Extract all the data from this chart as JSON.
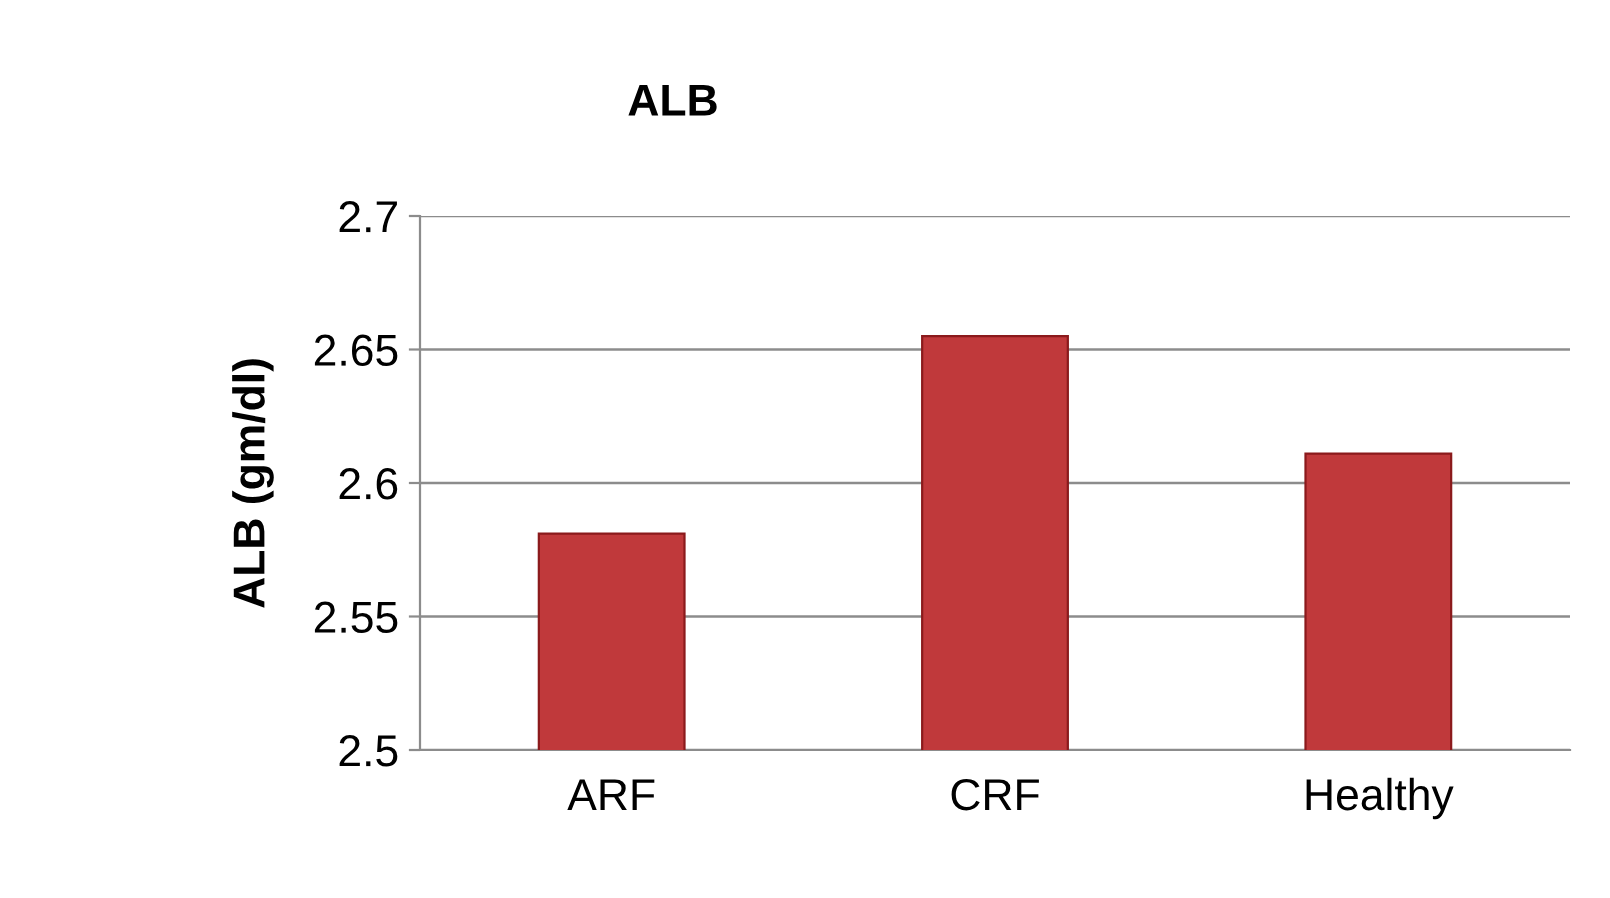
{
  "chart_data": {
    "type": "bar",
    "title": "ALB",
    "ylabel": "ALB (gm/dl)",
    "categories": [
      "ARF",
      "CRF",
      "Healthy"
    ],
    "values": [
      2.581,
      2.655,
      2.611
    ],
    "color": "#c0393b",
    "ylim": [
      2.5,
      2.7
    ],
    "yticks": [
      2.5,
      2.55,
      2.6,
      2.65,
      2.7
    ],
    "grid": "y",
    "legend": false
  }
}
